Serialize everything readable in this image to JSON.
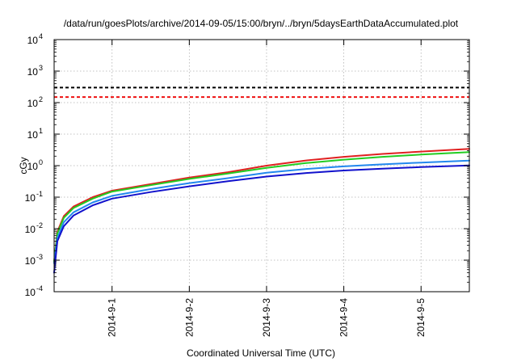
{
  "chart_data": {
    "type": "line",
    "title": "/data/run/goesPlots/archive/2014-09-05/15:00/bryn/../bryn/5daysEarthDataAccumulated.plot",
    "xlabel": "Coordinated Universal Time (UTC)",
    "ylabel": "cGy",
    "y_scale": "log",
    "ylim": [
      0.0001,
      10000
    ],
    "y_ticks": [
      {
        "value": 0.0001,
        "base": "10",
        "exp": "-4"
      },
      {
        "value": 0.001,
        "base": "10",
        "exp": "-3"
      },
      {
        "value": 0.01,
        "base": "10",
        "exp": "-2"
      },
      {
        "value": 0.1,
        "base": "10",
        "exp": "-1"
      },
      {
        "value": 1,
        "base": "10",
        "exp": "0"
      },
      {
        "value": 10,
        "base": "10",
        "exp": "1"
      },
      {
        "value": 100,
        "base": "10",
        "exp": "2"
      },
      {
        "value": 1000,
        "base": "10",
        "exp": "3"
      },
      {
        "value": 10000,
        "base": "10",
        "exp": "4"
      }
    ],
    "xlim": [
      "2014-08-31T06:00",
      "2014-09-05T15:00"
    ],
    "x_ticks": [
      {
        "value": "2014-09-01T00:00",
        "label": "2014-9-1"
      },
      {
        "value": "2014-09-02T00:00",
        "label": "2014-9-2"
      },
      {
        "value": "2014-09-03T00:00",
        "label": "2014-9-3"
      },
      {
        "value": "2014-09-04T00:00",
        "label": "2014-9-4"
      },
      {
        "value": "2014-09-05T00:00",
        "label": "2014-9-5"
      }
    ],
    "grid": true,
    "thresholds": [
      {
        "value": 300,
        "color": "#000000",
        "dash": true
      },
      {
        "value": 150,
        "color": "#ee1111",
        "dash": true
      }
    ],
    "series": [
      {
        "color": "#e02020",
        "points": [
          [
            "2014-08-31T06:00",
            0.0009
          ],
          [
            "2014-08-31T07:00",
            0.008
          ],
          [
            "2014-08-31T09:00",
            0.025
          ],
          [
            "2014-08-31T12:00",
            0.05
          ],
          [
            "2014-08-31T18:00",
            0.1
          ],
          [
            "2014-09-01T00:00",
            0.16
          ],
          [
            "2014-09-01T12:00",
            0.26
          ],
          [
            "2014-09-02T00:00",
            0.42
          ],
          [
            "2014-09-02T12:00",
            0.62
          ],
          [
            "2014-09-03T00:00",
            1.0
          ],
          [
            "2014-09-03T12:00",
            1.45
          ],
          [
            "2014-09-04T00:00",
            1.9
          ],
          [
            "2014-09-04T12:00",
            2.35
          ],
          [
            "2014-09-05T00:00",
            2.8
          ],
          [
            "2014-09-05T15:00",
            3.4
          ]
        ]
      },
      {
        "color": "#22cc22",
        "points": [
          [
            "2014-08-31T06:00",
            0.0009
          ],
          [
            "2014-08-31T07:00",
            0.007
          ],
          [
            "2014-08-31T09:00",
            0.022
          ],
          [
            "2014-08-31T12:00",
            0.045
          ],
          [
            "2014-08-31T18:00",
            0.09
          ],
          [
            "2014-09-01T00:00",
            0.15
          ],
          [
            "2014-09-01T12:00",
            0.24
          ],
          [
            "2014-09-02T00:00",
            0.38
          ],
          [
            "2014-09-02T12:00",
            0.56
          ],
          [
            "2014-09-03T00:00",
            0.85
          ],
          [
            "2014-09-03T12:00",
            1.2
          ],
          [
            "2014-09-04T00:00",
            1.55
          ],
          [
            "2014-09-04T12:00",
            1.9
          ],
          [
            "2014-09-05T00:00",
            2.25
          ],
          [
            "2014-09-05T15:00",
            2.7
          ]
        ]
      },
      {
        "color": "#2288ee",
        "points": [
          [
            "2014-08-31T06:00",
            0.0008
          ],
          [
            "2014-08-31T07:00",
            0.005
          ],
          [
            "2014-08-31T09:00",
            0.016
          ],
          [
            "2014-08-31T12:00",
            0.033
          ],
          [
            "2014-08-31T18:00",
            0.068
          ],
          [
            "2014-09-01T00:00",
            0.11
          ],
          [
            "2014-09-01T12:00",
            0.18
          ],
          [
            "2014-09-02T00:00",
            0.28
          ],
          [
            "2014-09-02T12:00",
            0.4
          ],
          [
            "2014-09-03T00:00",
            0.6
          ],
          [
            "2014-09-03T12:00",
            0.78
          ],
          [
            "2014-09-04T00:00",
            0.95
          ],
          [
            "2014-09-04T12:00",
            1.1
          ],
          [
            "2014-09-05T00:00",
            1.25
          ],
          [
            "2014-09-05T15:00",
            1.45
          ]
        ]
      },
      {
        "color": "#1111cc",
        "points": [
          [
            "2014-08-31T06:00",
            0.0004
          ],
          [
            "2014-08-31T07:00",
            0.004
          ],
          [
            "2014-08-31T09:00",
            0.012
          ],
          [
            "2014-08-31T12:00",
            0.026
          ],
          [
            "2014-08-31T18:00",
            0.055
          ],
          [
            "2014-09-01T00:00",
            0.09
          ],
          [
            "2014-09-01T12:00",
            0.145
          ],
          [
            "2014-09-02T00:00",
            0.22
          ],
          [
            "2014-09-02T12:00",
            0.32
          ],
          [
            "2014-09-03T00:00",
            0.45
          ],
          [
            "2014-09-03T12:00",
            0.58
          ],
          [
            "2014-09-04T00:00",
            0.7
          ],
          [
            "2014-09-04T12:00",
            0.8
          ],
          [
            "2014-09-05T00:00",
            0.9
          ],
          [
            "2014-09-05T15:00",
            1.02
          ]
        ]
      }
    ]
  }
}
